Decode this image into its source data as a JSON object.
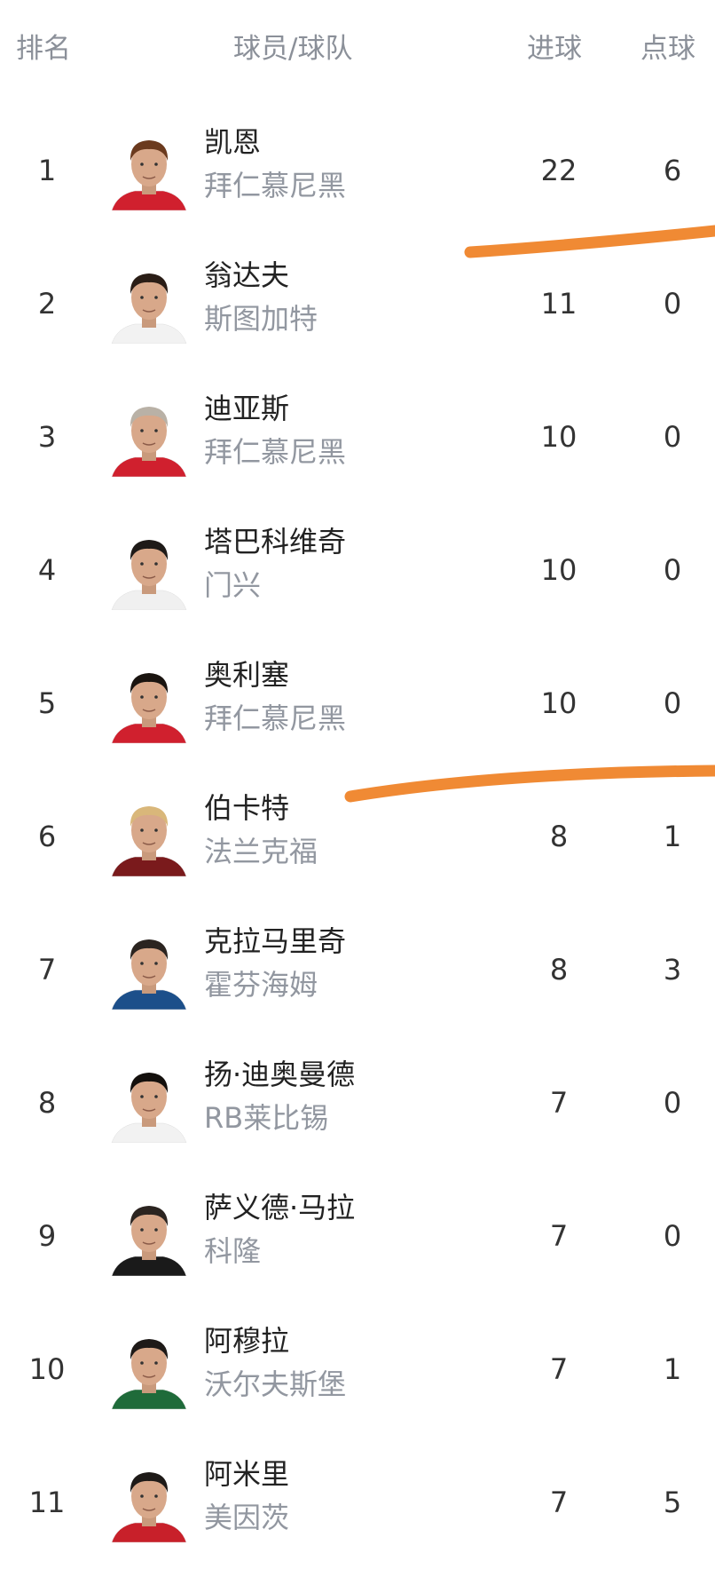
{
  "header": {
    "rank": "排名",
    "player_team": "球员/球队",
    "goals": "进球",
    "penalties": "点球"
  },
  "rows": [
    {
      "rank": "1",
      "name": "凯恩",
      "team": "拜仁慕尼黑",
      "goals": "22",
      "penalties": "6",
      "jersey": "#d0202e",
      "hair": "#6b3a1e"
    },
    {
      "rank": "2",
      "name": "翁达夫",
      "team": "斯图加特",
      "goals": "11",
      "penalties": "0",
      "jersey": "#f2f2f2",
      "hair": "#2a1d16"
    },
    {
      "rank": "3",
      "name": "迪亚斯",
      "team": "拜仁慕尼黑",
      "goals": "10",
      "penalties": "0",
      "jersey": "#d0202e",
      "hair": "#b9b1a6"
    },
    {
      "rank": "4",
      "name": "塔巴科维奇",
      "team": "门兴",
      "goals": "10",
      "penalties": "0",
      "jersey": "#f0f0f0",
      "hair": "#1e1a18"
    },
    {
      "rank": "5",
      "name": "奥利塞",
      "team": "拜仁慕尼黑",
      "goals": "10",
      "penalties": "0",
      "jersey": "#d0202e",
      "hair": "#1a1410"
    },
    {
      "rank": "6",
      "name": "伯卡特",
      "team": "法兰克福",
      "goals": "8",
      "penalties": "1",
      "jersey": "#7a1a1c",
      "hair": "#d9b77a"
    },
    {
      "rank": "7",
      "name": "克拉马里奇",
      "team": "霍芬海姆",
      "goals": "8",
      "penalties": "3",
      "jersey": "#1c4f8a",
      "hair": "#2b2420"
    },
    {
      "rank": "8",
      "name": "扬·迪奥曼德",
      "team": "RB莱比锡",
      "goals": "7",
      "penalties": "0",
      "jersey": "#f2f2f2",
      "hair": "#14100d"
    },
    {
      "rank": "9",
      "name": "萨义德·马拉",
      "team": "科隆",
      "goals": "7",
      "penalties": "0",
      "jersey": "#1a1a1a",
      "hair": "#2b2420"
    },
    {
      "rank": "10",
      "name": "阿穆拉",
      "team": "沃尔夫斯堡",
      "goals": "7",
      "penalties": "1",
      "jersey": "#1f6b3a",
      "hair": "#1e1a18"
    },
    {
      "rank": "11",
      "name": "阿米里",
      "team": "美因茨",
      "goals": "7",
      "penalties": "5",
      "jersey": "#c8202a",
      "hair": "#1e1a18"
    }
  ],
  "annotation_color": "#f08a34"
}
